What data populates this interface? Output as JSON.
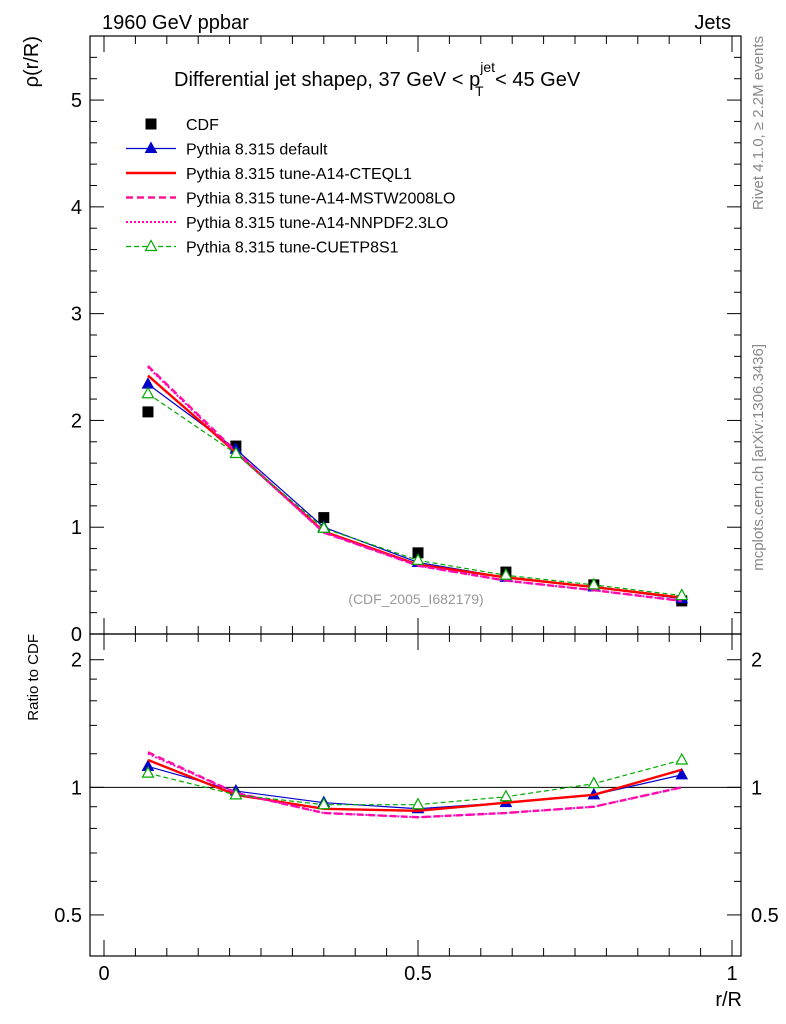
{
  "header": {
    "left": "1960 GeV ppbar",
    "right": "Jets"
  },
  "side": {
    "rivet": "Rivet 4.1.0, ≥ 2.2M events",
    "mcplots": "mcplots.cern.ch [arXiv:1306.3436]"
  },
  "chart_data": [
    {
      "type": "line",
      "title_main": "Differential jet shapeρ, 37 GeV < p",
      "title_sup": "jet",
      "title_sub": "T",
      "title_end": " < 45 GeV",
      "ylabel": "ρ(r/R)",
      "analysis_tag": "(CDF_2005_I682179)",
      "xlim": [
        0,
        1
      ],
      "ylim": [
        0,
        5.6
      ],
      "yticks": [
        0,
        1,
        2,
        3,
        4,
        5
      ],
      "ytick_labels": [
        "0",
        "1",
        "2",
        "3",
        "4",
        "5"
      ],
      "x": [
        0.07,
        0.21,
        0.35,
        0.5,
        0.64,
        0.78,
        0.92
      ],
      "series": [
        {
          "name": "CDF",
          "color": "#000000",
          "style": "data",
          "values": [
            2.08,
            1.76,
            1.09,
            0.76,
            0.58,
            0.46,
            0.31
          ]
        },
        {
          "name": "Pythia 8.315 default",
          "color": "#0000cc",
          "style": "solid-thin",
          "marker": "triangle-filled",
          "values": [
            2.34,
            1.73,
            1.0,
            0.67,
            0.53,
            0.44,
            0.33
          ]
        },
        {
          "name": "Pythia 8.315 tune-A14-CTEQL1",
          "color": "#ff0000",
          "style": "solid-thick",
          "values": [
            2.42,
            1.7,
            0.96,
            0.65,
            0.53,
            0.44,
            0.34
          ]
        },
        {
          "name": "Pythia 8.315 tune-A14-MSTW2008LO",
          "color": "#ff1493",
          "style": "dashed",
          "values": [
            2.51,
            1.71,
            0.95,
            0.64,
            0.5,
            0.41,
            0.31
          ]
        },
        {
          "name": "Pythia 8.315 tune-A14-NNPDF2.3LO",
          "color": "#ff00cc",
          "style": "dotted",
          "values": [
            2.5,
            1.7,
            0.95,
            0.64,
            0.5,
            0.41,
            0.31
          ]
        },
        {
          "name": "Pythia 8.315 tune-CUETP8S1",
          "color": "#00aa00",
          "style": "dashed-thin",
          "marker": "triangle-open",
          "values": [
            2.25,
            1.69,
            0.99,
            0.69,
            0.55,
            0.46,
            0.36
          ]
        }
      ]
    },
    {
      "type": "line",
      "ylabel": "Ratio to CDF",
      "xlabel": "r/R",
      "xlim": [
        0,
        1
      ],
      "ylim": [
        0.4,
        2.3
      ],
      "yscale": "log",
      "yticks": [
        0.5,
        1,
        2
      ],
      "ytick_labels": [
        "0.5",
        "1",
        "2"
      ],
      "xticks": [
        0,
        0.5,
        1
      ],
      "xtick_labels": [
        "0",
        "0.5",
        "1"
      ],
      "x": [
        0.07,
        0.21,
        0.35,
        0.5,
        0.64,
        0.78,
        0.92
      ],
      "series": [
        {
          "name": "Pythia 8.315 default",
          "color": "#0000cc",
          "style": "solid-thin",
          "marker": "triangle-filled",
          "values": [
            1.12,
            0.98,
            0.92,
            0.89,
            0.92,
            0.96,
            1.07
          ]
        },
        {
          "name": "Pythia 8.315 tune-A14-CTEQL1",
          "color": "#ff0000",
          "style": "solid-thick",
          "values": [
            1.16,
            0.96,
            0.89,
            0.88,
            0.92,
            0.96,
            1.1
          ]
        },
        {
          "name": "Pythia 8.315 tune-A14-MSTW2008LO",
          "color": "#ff1493",
          "style": "dashed",
          "values": [
            1.21,
            0.97,
            0.87,
            0.85,
            0.87,
            0.9,
            1.0
          ]
        },
        {
          "name": "Pythia 8.315 tune-A14-NNPDF2.3LO",
          "color": "#ff00cc",
          "style": "dotted",
          "values": [
            1.2,
            0.97,
            0.87,
            0.85,
            0.87,
            0.9,
            1.0
          ]
        },
        {
          "name": "Pythia 8.315 tune-CUETP8S1",
          "color": "#00aa00",
          "style": "dashed-thin",
          "marker": "triangle-open",
          "values": [
            1.08,
            0.96,
            0.91,
            0.91,
            0.95,
            1.02,
            1.16
          ]
        }
      ]
    }
  ]
}
